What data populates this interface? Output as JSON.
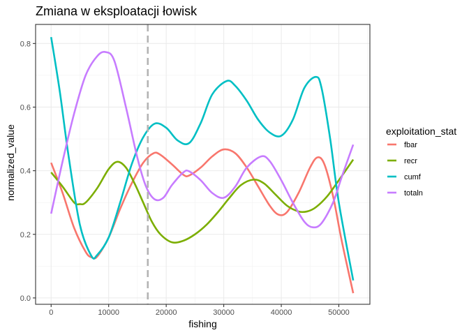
{
  "chart_data": {
    "type": "line",
    "title": "Zmiana w eksploatacji łowisk",
    "xlabel": "fishing",
    "ylabel": "normalized_value",
    "xlim": [
      -2700,
      55400
    ],
    "ylim": [
      -0.02,
      0.86
    ],
    "xticks": [
      0,
      10000,
      20000,
      30000,
      40000,
      50000
    ],
    "yticks": [
      0.0,
      0.2,
      0.4,
      0.6,
      0.8
    ],
    "ytick_labels": [
      "0.0",
      "0.2",
      "0.4",
      "0.6",
      "0.8"
    ],
    "grid": true,
    "vline": {
      "x": 16800,
      "color": "#b3b3b3",
      "style": "dashed"
    },
    "legend": {
      "title": "exploitation_stat",
      "position": "right"
    },
    "series": [
      {
        "name": "fbar",
        "color": "#F8766D",
        "x": [
          0,
          2000,
          4000,
          6000,
          7000,
          8000,
          10000,
          12000,
          14000,
          16000,
          17800,
          19000,
          21000,
          23000,
          24000,
          26000,
          28000,
          30000,
          32000,
          34000,
          36000,
          38000,
          39500,
          41000,
          43000,
          45000,
          46300,
          47500,
          49000,
          50500,
          52500
        ],
        "y": [
          0.425,
          0.33,
          0.22,
          0.145,
          0.128,
          0.13,
          0.19,
          0.28,
          0.36,
          0.425,
          0.455,
          0.45,
          0.42,
          0.387,
          0.385,
          0.41,
          0.445,
          0.467,
          0.455,
          0.41,
          0.35,
          0.29,
          0.262,
          0.27,
          0.33,
          0.41,
          0.442,
          0.42,
          0.32,
          0.18,
          0.015
        ]
      },
      {
        "name": "recr",
        "color": "#7CAE00",
        "x": [
          0,
          2000,
          4000,
          5000,
          6000,
          8000,
          10000,
          11500,
          13000,
          14500,
          16000,
          17500,
          19000,
          21000,
          23000,
          25000,
          27000,
          29000,
          31000,
          33000,
          35200,
          37000,
          39000,
          41000,
          43000,
          44500,
          46000,
          48000,
          50000,
          52500
        ],
        "y": [
          0.395,
          0.35,
          0.3,
          0.295,
          0.3,
          0.345,
          0.405,
          0.428,
          0.41,
          0.36,
          0.3,
          0.24,
          0.2,
          0.175,
          0.18,
          0.2,
          0.23,
          0.27,
          0.315,
          0.355,
          0.372,
          0.36,
          0.325,
          0.29,
          0.272,
          0.272,
          0.285,
          0.32,
          0.37,
          0.435
        ]
      },
      {
        "name": "cumf",
        "color": "#00BFC4",
        "x": [
          0,
          1500,
          3000,
          5000,
          7000,
          8000,
          10000,
          12000,
          14000,
          16000,
          18000,
          20000,
          22000,
          24000,
          26000,
          28000,
          30500,
          32000,
          34000,
          36000,
          38000,
          40000,
          42000,
          44000,
          46000,
          47000,
          48500,
          50000,
          52500
        ],
        "y": [
          0.82,
          0.65,
          0.45,
          0.23,
          0.132,
          0.135,
          0.19,
          0.3,
          0.42,
          0.505,
          0.548,
          0.535,
          0.495,
          0.487,
          0.55,
          0.64,
          0.682,
          0.667,
          0.62,
          0.56,
          0.52,
          0.51,
          0.56,
          0.66,
          0.695,
          0.66,
          0.5,
          0.3,
          0.055
        ]
      },
      {
        "name": "totaln",
        "color": "#C77CFF",
        "x": [
          0,
          2000,
          4000,
          6000,
          8000,
          9500,
          11000,
          13000,
          15000,
          16500,
          18000,
          19500,
          21000,
          23000,
          24000,
          26000,
          28000,
          30000,
          32000,
          34000,
          36500,
          38000,
          40000,
          42000,
          44000,
          45500,
          47000,
          49000,
          50500,
          52500
        ],
        "y": [
          0.265,
          0.43,
          0.58,
          0.7,
          0.76,
          0.773,
          0.745,
          0.6,
          0.44,
          0.35,
          0.31,
          0.315,
          0.355,
          0.395,
          0.398,
          0.37,
          0.33,
          0.315,
          0.35,
          0.41,
          0.445,
          0.43,
          0.37,
          0.3,
          0.24,
          0.222,
          0.235,
          0.3,
          0.38,
          0.482
        ]
      }
    ]
  }
}
